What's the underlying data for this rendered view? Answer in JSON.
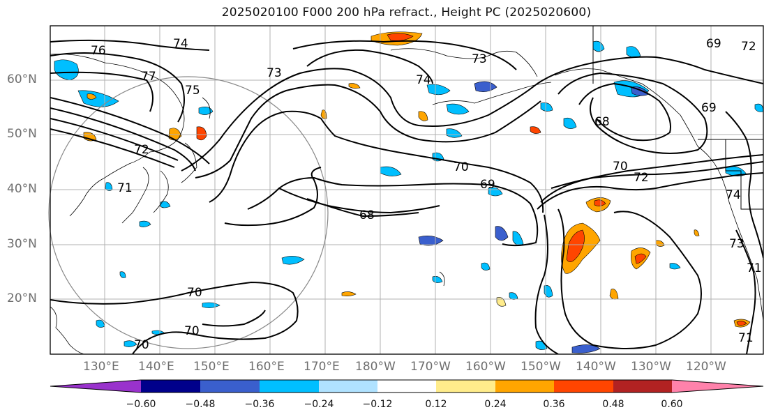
{
  "title": "2025020100 F000 200 hPa refract., Height PC (2025020600)",
  "map": {
    "lat_labels": [
      "60°N",
      "50°N",
      "40°N",
      "30°N",
      "20°N"
    ],
    "lon_labels": [
      "130°E",
      "140°E",
      "150°E",
      "160°E",
      "170°E",
      "180°W",
      "170°W",
      "160°W",
      "150°W",
      "140°W",
      "130°W",
      "120°W"
    ],
    "contour_labels": [
      "76",
      "74",
      "73",
      "73",
      "74",
      "75",
      "77",
      "72",
      "71",
      "70",
      "70",
      "69",
      "68",
      "70",
      "70",
      "70",
      "72",
      "69",
      "68",
      "69",
      "72",
      "71",
      "74",
      "73",
      "71"
    ]
  },
  "colorbar": {
    "tick_labels": [
      "−0.60",
      "−0.48",
      "−0.36",
      "−0.24",
      "−0.12",
      "0.12",
      "0.24",
      "0.36",
      "0.48",
      "0.60"
    ],
    "colors": [
      "#9932CC",
      "#00008B",
      "#3A5FCD",
      "#00BFFF",
      "#B0E2FF",
      "#FFFFFF",
      "#FFEC8B",
      "#FFA500",
      "#FF4500",
      "#B22222",
      "#FF82AB"
    ]
  }
}
